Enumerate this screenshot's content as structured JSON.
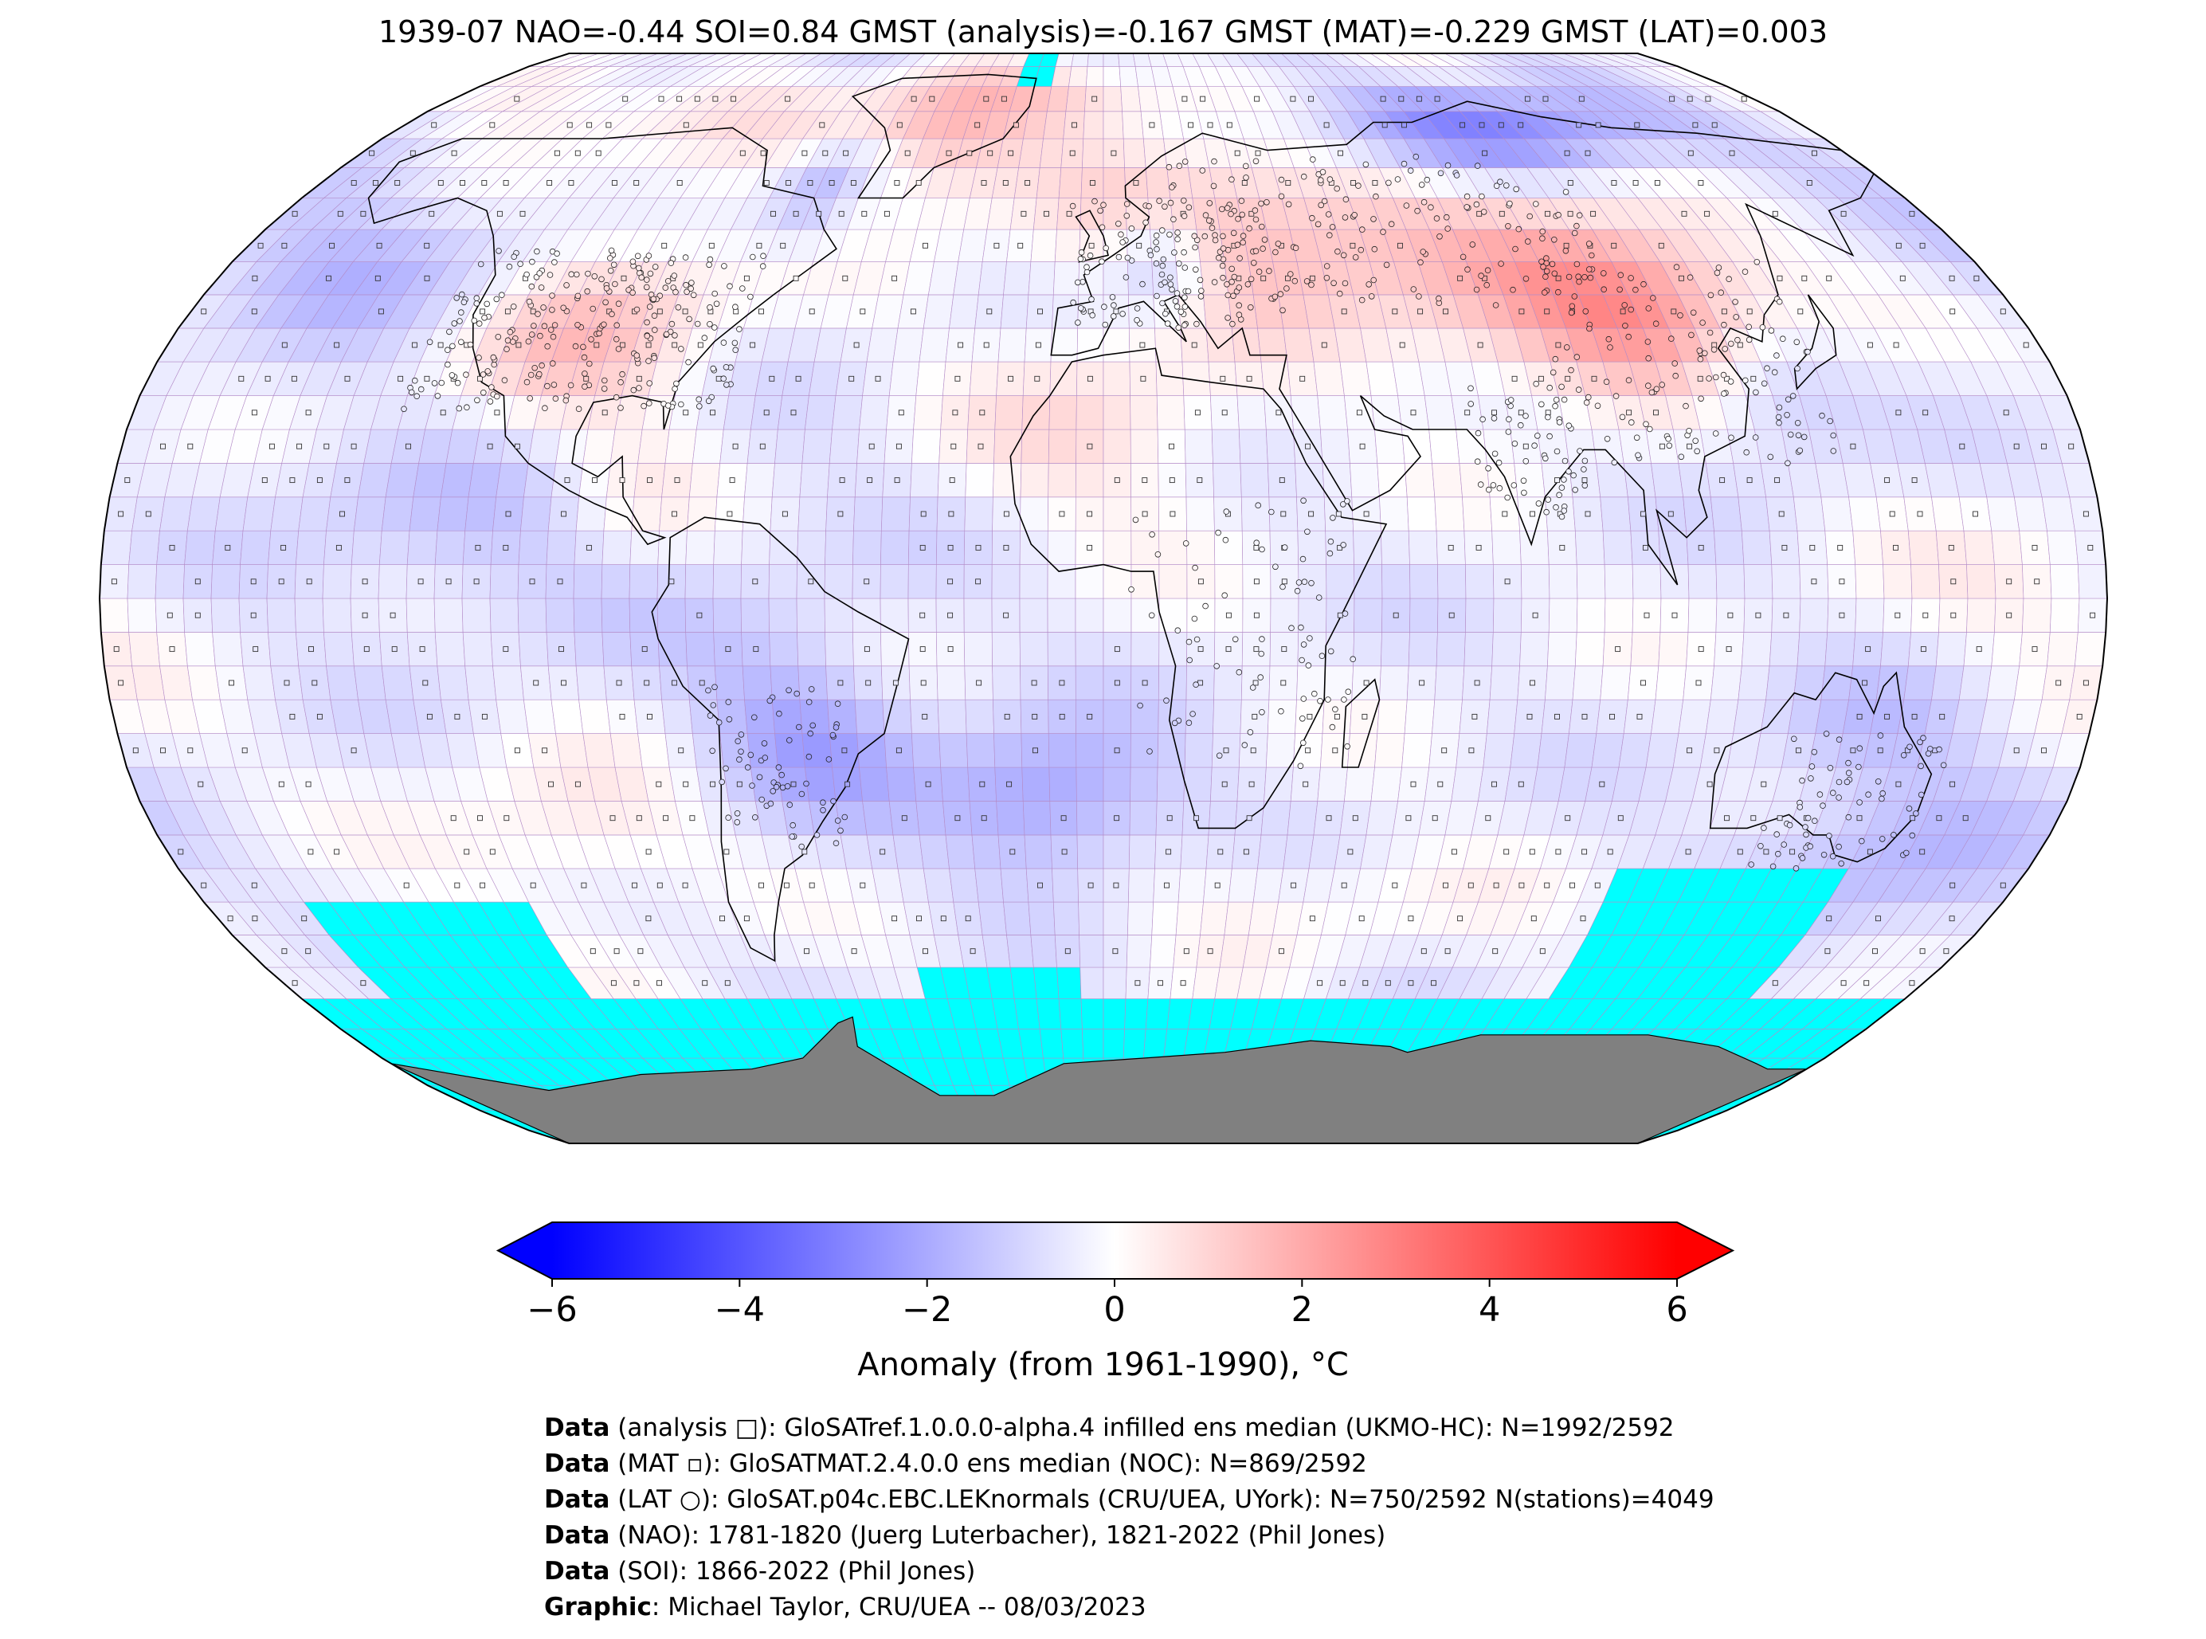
{
  "title": "1939-07 NAO=-0.44 SOI=0.84 GMST (analysis)=-0.167 GMST (MAT)=-0.229 GMST (LAT)=0.003",
  "colors": {
    "no_data": "#00ffff",
    "antarctica": "#808080",
    "grid": "#b48cc8",
    "cold": "#0000ff",
    "neutral": "#ffffff",
    "warm": "#ff0000"
  },
  "colorbar": {
    "label": "Anomaly (from 1961-1990), °C",
    "min": -6,
    "max": 6,
    "ticks": [
      "−6",
      "−4",
      "−2",
      "0",
      "2",
      "4",
      "6"
    ],
    "extend": "both"
  },
  "map": {
    "projection": "Robinson",
    "grid_resolution_deg": 5,
    "markers": {
      "analysis": "square",
      "mat": "small-square",
      "lat": "circle"
    }
  },
  "credits": [
    {
      "key": "Data",
      "text": " (analysis □): GloSATref.1.0.0.0-alpha.4 infilled ens median (UKMO-HC): N=1992/2592"
    },
    {
      "key": "Data",
      "text": " (MAT ▫): GloSATMAT.2.4.0.0 ens median (NOC): N=869/2592"
    },
    {
      "key": "Data",
      "text": " (LAT ○): GloSAT.p04c.EBC.LEKnormals (CRU/UEA, UYork): N=750/2592 N(stations)=4049"
    },
    {
      "key": "Data",
      "text": " (NAO): 1781-1820 (Juerg Luterbacher), 1821-2022 (Phil Jones)"
    },
    {
      "key": "Data",
      "text": " (SOI): 1866-2022 (Phil Jones)"
    },
    {
      "key": "Graphic",
      "text": ": Michael Taylor, CRU/UEA -- 08/03/2023"
    }
  ]
}
